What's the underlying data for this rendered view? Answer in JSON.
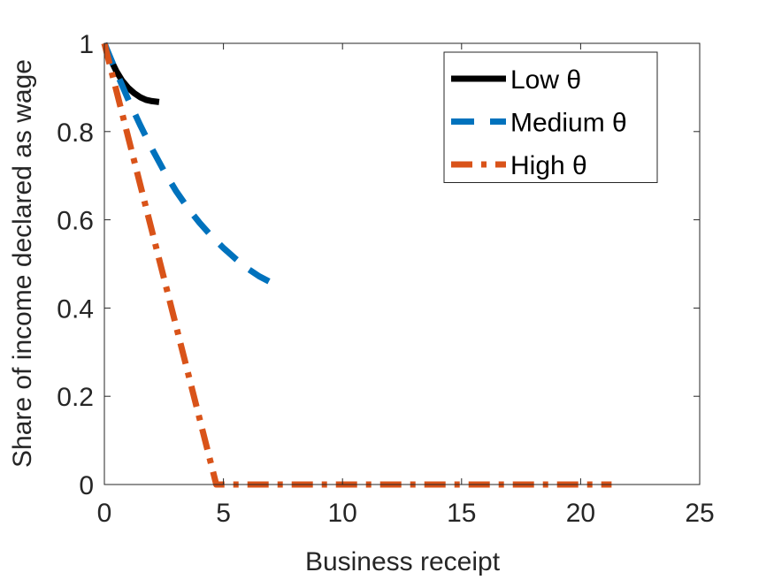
{
  "chart_data": {
    "type": "line",
    "title": "",
    "xlabel": "Business receipt",
    "ylabel": "Share of income declared as wage",
    "xlim": [
      0,
      25
    ],
    "ylim": [
      0,
      1
    ],
    "xticks": [
      0,
      5,
      10,
      15,
      20,
      25
    ],
    "xtick_labels": [
      "0",
      "5",
      "10",
      "15",
      "20",
      "25"
    ],
    "yticks": [
      0,
      0.2,
      0.4,
      0.6,
      0.8,
      1
    ],
    "ytick_labels": [
      "0",
      "0.2",
      "0.4",
      "0.6",
      "0.8",
      "1"
    ],
    "grid": false,
    "legend_position": "top-right",
    "series": [
      {
        "name": "Low θ",
        "color": "#000000",
        "style": "solid",
        "x": [
          0,
          0.25,
          0.5,
          0.75,
          1.0,
          1.25,
          1.5,
          1.75,
          2.0,
          2.3
        ],
        "y": [
          1.0,
          0.965,
          0.937,
          0.915,
          0.899,
          0.887,
          0.878,
          0.872,
          0.869,
          0.867
        ]
      },
      {
        "name": "Medium θ",
        "color": "#0072BD",
        "style": "dashed",
        "x": [
          0,
          0.5,
          1.0,
          1.5,
          2.0,
          2.5,
          3.0,
          3.5,
          4.0,
          4.5,
          5.0,
          5.5,
          6.0,
          6.5,
          7.0,
          7.5
        ],
        "y": [
          1.0,
          0.935,
          0.873,
          0.815,
          0.761,
          0.711,
          0.666,
          0.627,
          0.593,
          0.563,
          0.536,
          0.512,
          0.49,
          0.472,
          0.458,
          0.448
        ]
      },
      {
        "name": "High θ",
        "color": "#D95319",
        "style": "dash-dot",
        "x": [
          0,
          4.7,
          21.3
        ],
        "y": [
          1.0,
          0.0,
          0.0
        ]
      }
    ]
  }
}
